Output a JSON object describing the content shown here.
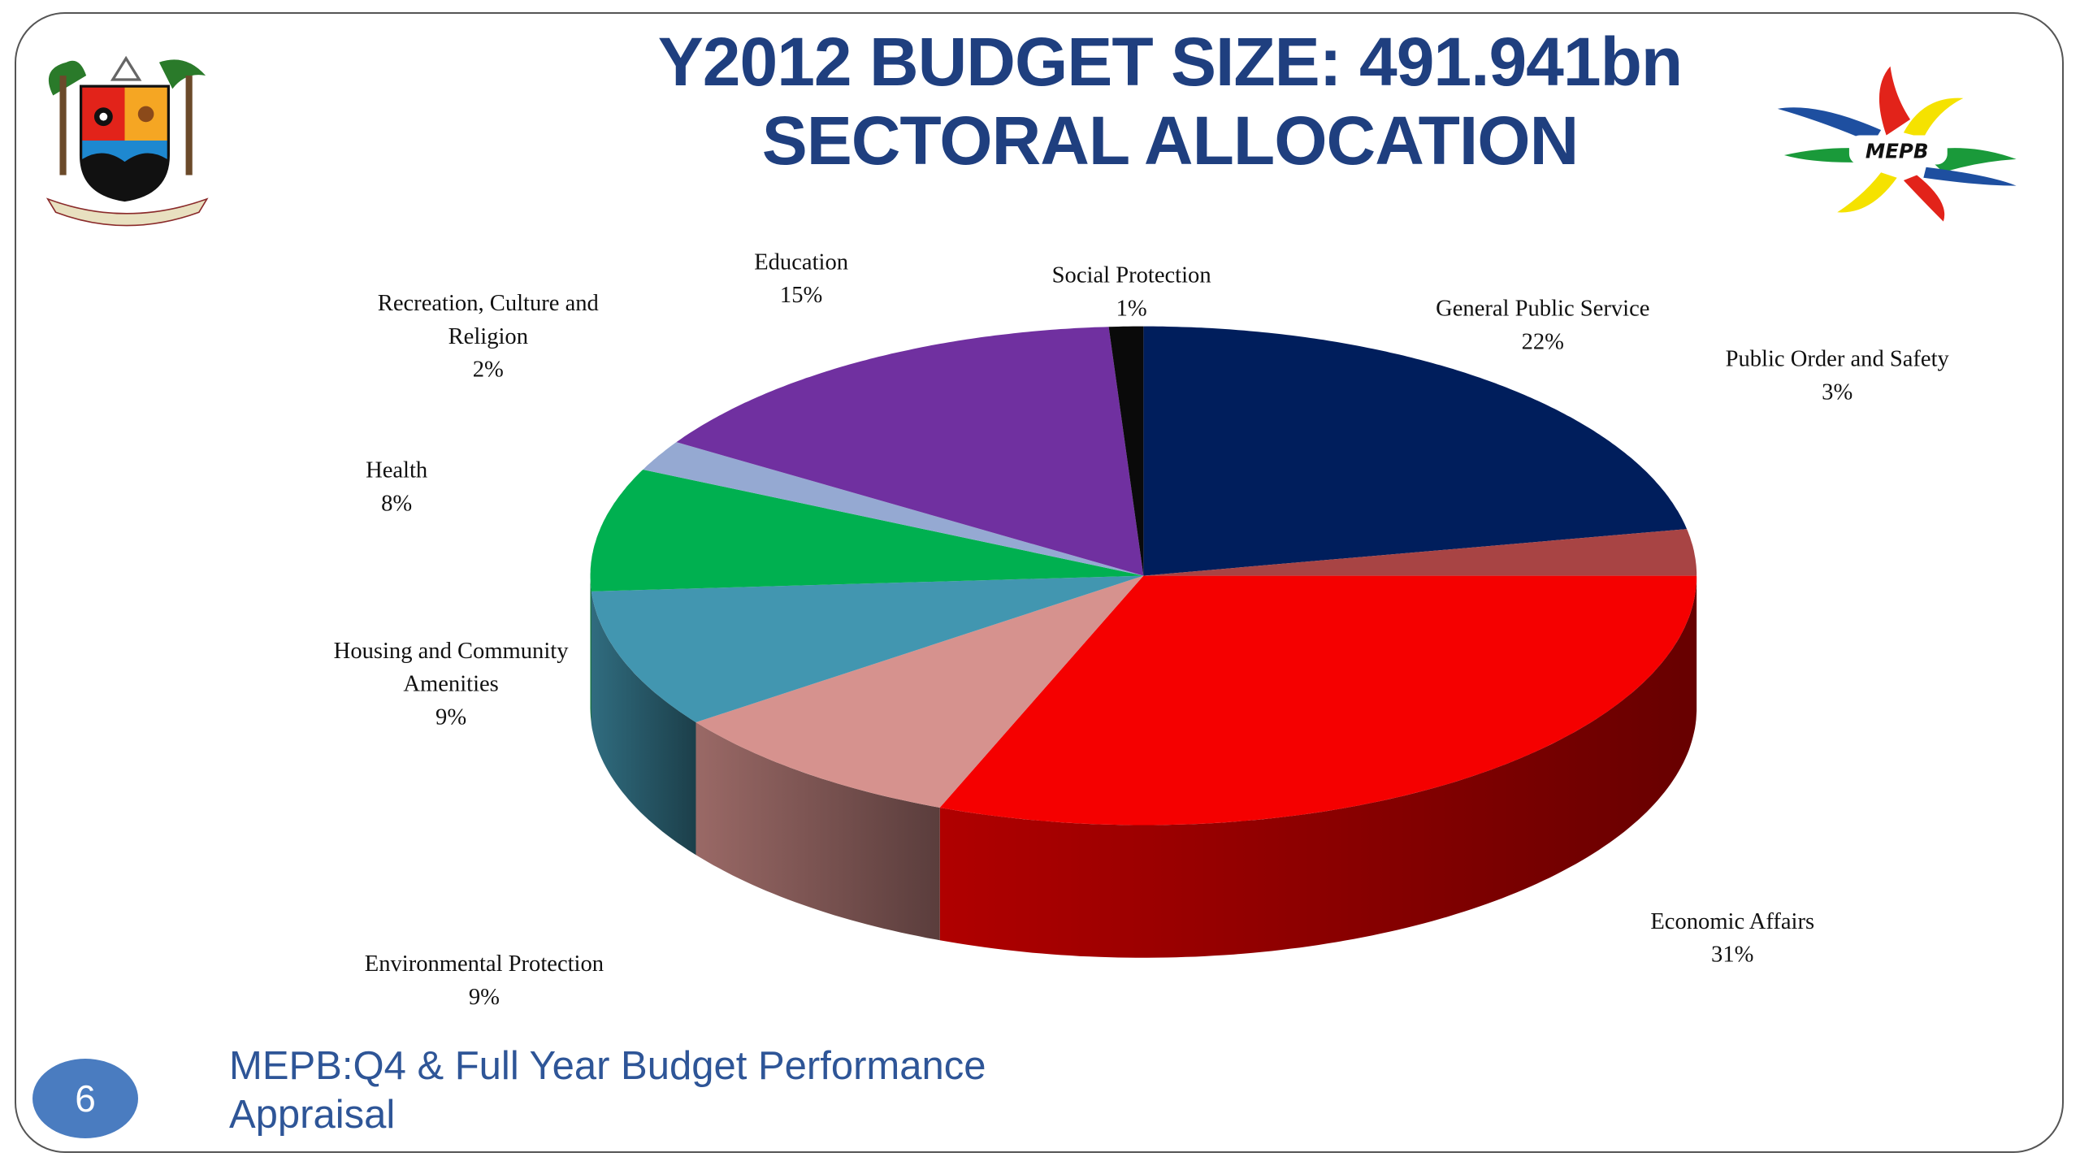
{
  "title_line1": "Y2012 BUDGET SIZE: 491.941bn",
  "title_line2": "SECTORAL ALLOCATION",
  "footer_text": "MEPB:Q4 & Full Year  Budget Performance Appraisal",
  "page_number": "6",
  "logos": {
    "left": "Lagos State crest - JUSTICE AND PROGRESS",
    "right": "MEPB"
  },
  "chart_data": {
    "type": "pie",
    "style": "3d",
    "title": "SECTORAL ALLOCATION",
    "unit": "%",
    "slices": [
      {
        "name": "General Public Service",
        "label_lines": [
          "General Public Service"
        ],
        "value": 22,
        "value_label": "22%",
        "color": "#001e5c"
      },
      {
        "name": "Public Order and Safety",
        "label_lines": [
          "Public Order and Safety"
        ],
        "value": 3,
        "value_label": "3%",
        "color": "#a84444"
      },
      {
        "name": "Economic Affairs",
        "label_lines": [
          "Economic Affairs"
        ],
        "value": 31,
        "value_label": "31%",
        "color": "#f50000"
      },
      {
        "name": "Environmental Protection",
        "label_lines": [
          "Environmental Protection"
        ],
        "value": 9,
        "value_label": "9%",
        "color": "#d6928e"
      },
      {
        "name": "Housing and Community Amenities",
        "label_lines": [
          "Housing and Community",
          "Amenities"
        ],
        "value": 9,
        "value_label": "9%",
        "color": "#4296b0"
      },
      {
        "name": "Health",
        "label_lines": [
          "Health"
        ],
        "value": 8,
        "value_label": "8%",
        "color": "#00b050"
      },
      {
        "name": "Recreation, Culture and Religion",
        "label_lines": [
          "Recreation, Culture and",
          "Religion"
        ],
        "value": 2,
        "value_label": "2%",
        "color": "#95a9d2"
      },
      {
        "name": "Education",
        "label_lines": [
          "Education"
        ],
        "value": 15,
        "value_label": "15%",
        "color": "#7030a0"
      },
      {
        "name": "Social Protection",
        "label_lines": [
          "Social Protection"
        ],
        "value": 1,
        "value_label": "1%",
        "color": "#0a0a0a"
      }
    ]
  }
}
